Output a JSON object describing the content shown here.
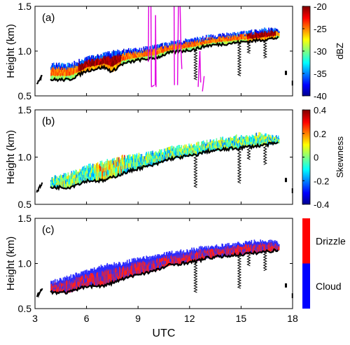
{
  "chart_data": [
    {
      "type": "heatmap",
      "panel_label": "(a)",
      "ylabel": "Height (km)",
      "ylim": [
        0.5,
        1.5
      ],
      "yticks": [
        0.5,
        1.0,
        1.5
      ],
      "xlim": [
        3,
        18
      ],
      "colorbar": {
        "label": "dBZ",
        "ticks": [
          "-20",
          "-25",
          "-30",
          "-35",
          "-40"
        ],
        "range": [
          -40,
          -20
        ]
      },
      "cloud_base": [
        [
          3.15,
          0.65
        ],
        [
          3.4,
          0.72
        ],
        [
          4,
          0.68
        ],
        [
          5,
          0.68
        ],
        [
          6,
          0.78
        ],
        [
          7,
          0.82
        ],
        [
          7.5,
          0.77
        ],
        [
          8,
          0.85
        ],
        [
          9,
          0.9
        ],
        [
          10,
          0.92
        ],
        [
          10.8,
          0.98
        ],
        [
          11.5,
          1.0
        ],
        [
          12.3,
          1.02
        ],
        [
          13,
          1.06
        ],
        [
          14,
          1.08
        ],
        [
          15,
          1.1
        ],
        [
          16,
          1.12
        ],
        [
          16.8,
          1.14
        ],
        [
          17.2,
          1.15
        ]
      ],
      "cloud_top": [
        [
          4,
          0.85
        ],
        [
          5,
          0.85
        ],
        [
          6,
          0.92
        ],
        [
          7,
          0.97
        ],
        [
          8,
          1.0
        ],
        [
          9,
          1.02
        ],
        [
          10,
          1.05
        ],
        [
          11,
          1.1
        ],
        [
          12,
          1.12
        ],
        [
          13,
          1.16
        ],
        [
          14,
          1.18
        ],
        [
          15,
          1.2
        ],
        [
          16,
          1.23
        ],
        [
          16.8,
          1.25
        ],
        [
          17.2,
          1.22
        ]
      ],
      "overlay_line_color": "#e000e0"
    },
    {
      "type": "heatmap",
      "panel_label": "(b)",
      "ylabel": "Height (km)",
      "ylim": [
        0.5,
        1.5
      ],
      "yticks": [
        0.5,
        1.0,
        1.5
      ],
      "xlim": [
        3,
        18
      ],
      "colorbar": {
        "label": "Skewness",
        "ticks": [
          "0.4",
          "0.2",
          "0",
          "-0.2",
          "-0.4"
        ],
        "range": [
          -0.4,
          0.4
        ]
      },
      "cloud_base": [
        [
          3.15,
          0.65
        ],
        [
          3.4,
          0.72
        ],
        [
          4,
          0.68
        ],
        [
          5,
          0.68
        ],
        [
          6,
          0.75
        ],
        [
          7,
          0.75
        ],
        [
          8,
          0.82
        ],
        [
          9,
          0.88
        ],
        [
          10,
          0.92
        ],
        [
          10.8,
          0.98
        ],
        [
          11.5,
          1.0
        ],
        [
          12.3,
          1.02
        ],
        [
          13,
          1.06
        ],
        [
          14,
          1.08
        ],
        [
          15,
          1.1
        ],
        [
          16,
          1.12
        ],
        [
          16.8,
          1.14
        ],
        [
          17.2,
          1.15
        ]
      ],
      "cloud_top": [
        [
          4,
          0.78
        ],
        [
          5,
          0.82
        ],
        [
          6,
          0.9
        ],
        [
          7,
          0.95
        ],
        [
          8,
          1.0
        ],
        [
          9,
          1.02
        ],
        [
          10,
          1.05
        ],
        [
          11,
          1.1
        ],
        [
          12,
          1.12
        ],
        [
          13,
          1.16
        ],
        [
          14,
          1.2
        ],
        [
          15,
          1.22
        ],
        [
          16,
          1.24
        ],
        [
          16.8,
          1.22
        ],
        [
          17.2,
          1.2
        ]
      ]
    },
    {
      "type": "heatmap",
      "panel_label": "(c)",
      "ylabel": "Height (km)",
      "ylim": [
        0.5,
        1.5
      ],
      "yticks": [
        0.5,
        1.0,
        1.5
      ],
      "xlim": [
        3,
        18
      ],
      "xlabel": "UTC",
      "xticks": [
        3,
        6,
        9,
        12,
        15,
        18
      ],
      "colorbar": {
        "categories": [
          "Drizzle",
          "Cloud"
        ],
        "colors": [
          "#ff0000",
          "#0000ff"
        ]
      },
      "cloud_base": [
        [
          3.15,
          0.65
        ],
        [
          3.4,
          0.72
        ],
        [
          4,
          0.68
        ],
        [
          5,
          0.68
        ],
        [
          6,
          0.75
        ],
        [
          7,
          0.75
        ],
        [
          8,
          0.82
        ],
        [
          9,
          0.88
        ],
        [
          10,
          0.92
        ],
        [
          10.8,
          0.98
        ],
        [
          11.5,
          1.0
        ],
        [
          12.3,
          1.02
        ],
        [
          13,
          1.06
        ],
        [
          14,
          1.08
        ],
        [
          15,
          1.1
        ],
        [
          16,
          1.12
        ],
        [
          16.8,
          1.14
        ],
        [
          17.2,
          1.15
        ]
      ],
      "cloud_top": [
        [
          4,
          0.8
        ],
        [
          5,
          0.85
        ],
        [
          6,
          0.92
        ],
        [
          7,
          0.98
        ],
        [
          8,
          1.0
        ],
        [
          9,
          1.05
        ],
        [
          10,
          1.08
        ],
        [
          11,
          1.12
        ],
        [
          12,
          1.15
        ],
        [
          13,
          1.18
        ],
        [
          14,
          1.2
        ],
        [
          15,
          1.22
        ],
        [
          16,
          1.25
        ],
        [
          16.8,
          1.25
        ],
        [
          17.2,
          1.22
        ]
      ]
    }
  ]
}
